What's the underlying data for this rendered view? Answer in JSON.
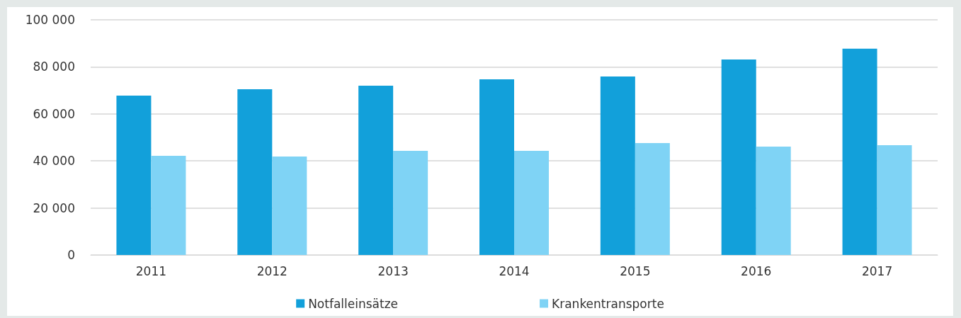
{
  "chart_data": {
    "type": "bar",
    "categories": [
      "2011",
      "2012",
      "2013",
      "2014",
      "2015",
      "2016",
      "2017"
    ],
    "series": [
      {
        "name": "Notfalleinsätze",
        "color": "#12a0da",
        "values": [
          67800,
          70500,
          72000,
          74700,
          75900,
          83100,
          87700
        ]
      },
      {
        "name": "Krankentransporte",
        "color": "#7fd3f5",
        "values": [
          42200,
          41900,
          44300,
          44300,
          47600,
          46100,
          46700
        ]
      }
    ],
    "ylim": [
      0,
      100000
    ],
    "yticks": [
      0,
      {
        "value": 20000,
        "label": "20 000"
      },
      {
        "value": 40000,
        "label": "40 000"
      },
      {
        "value": 60000,
        "label": "60 000"
      },
      {
        "value": 80000,
        "label": "80 000"
      },
      {
        "value": 100000,
        "label": "100 000"
      }
    ],
    "grid": "y",
    "legend": "bottom"
  }
}
